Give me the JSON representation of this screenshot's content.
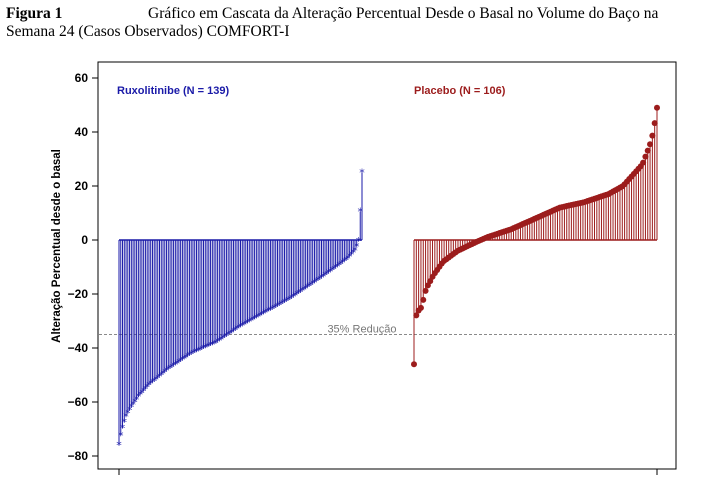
{
  "figure": {
    "label": "Figura 1",
    "title_line1": "Gráfico em Cascata da Alteração Percentual Desde o Basal no Volume do Baço na",
    "title_line2": "Semana 24 (Casos Observados) COMFORT-I"
  },
  "chart_data": {
    "type": "bar",
    "style": "waterfall-lollipop",
    "ylabel": "Alteração Percentual desde o basal",
    "xlabel": "",
    "ylim": [
      -85,
      65
    ],
    "yticks": [
      -80,
      -60,
      -40,
      -20,
      0,
      20,
      40,
      60
    ],
    "reference_line": {
      "value": -35,
      "label": "35% Redução",
      "style": "dashed",
      "color": "#8a8a8a"
    },
    "series": [
      {
        "name": "Ruxolitinibe (N = 139)",
        "color": "#1a1aa8",
        "marker": "asterisk",
        "n": 139,
        "profile": [
          [
            0,
            -76
          ],
          [
            0.01,
            -71
          ],
          [
            0.02,
            -68
          ],
          [
            0.03,
            -65
          ],
          [
            0.05,
            -62
          ],
          [
            0.08,
            -58
          ],
          [
            0.12,
            -54
          ],
          [
            0.2,
            -48
          ],
          [
            0.3,
            -42
          ],
          [
            0.4,
            -38
          ],
          [
            0.5,
            -32
          ],
          [
            0.6,
            -27
          ],
          [
            0.7,
            -22
          ],
          [
            0.8,
            -16
          ],
          [
            0.88,
            -11
          ],
          [
            0.94,
            -7
          ],
          [
            0.97,
            -4
          ],
          [
            0.985,
            -1
          ],
          [
            0.99,
            5
          ],
          [
            1.0,
            25
          ]
        ]
      },
      {
        "name": "Placebo (N = 106)",
        "color": "#9c1c1c",
        "marker": "circle",
        "n": 106,
        "profile": [
          [
            0,
            -46
          ],
          [
            0.01,
            -27
          ],
          [
            0.03,
            -25
          ],
          [
            0.05,
            -18
          ],
          [
            0.08,
            -13
          ],
          [
            0.12,
            -8
          ],
          [
            0.18,
            -4
          ],
          [
            0.25,
            -1
          ],
          [
            0.3,
            1
          ],
          [
            0.4,
            4
          ],
          [
            0.5,
            8
          ],
          [
            0.6,
            12
          ],
          [
            0.7,
            14
          ],
          [
            0.8,
            17
          ],
          [
            0.86,
            20
          ],
          [
            0.9,
            24
          ],
          [
            0.94,
            28
          ],
          [
            0.97,
            35
          ],
          [
            0.985,
            40
          ],
          [
            1.0,
            49
          ]
        ]
      }
    ],
    "legend_placement": "inside-top, one label per panel half"
  }
}
